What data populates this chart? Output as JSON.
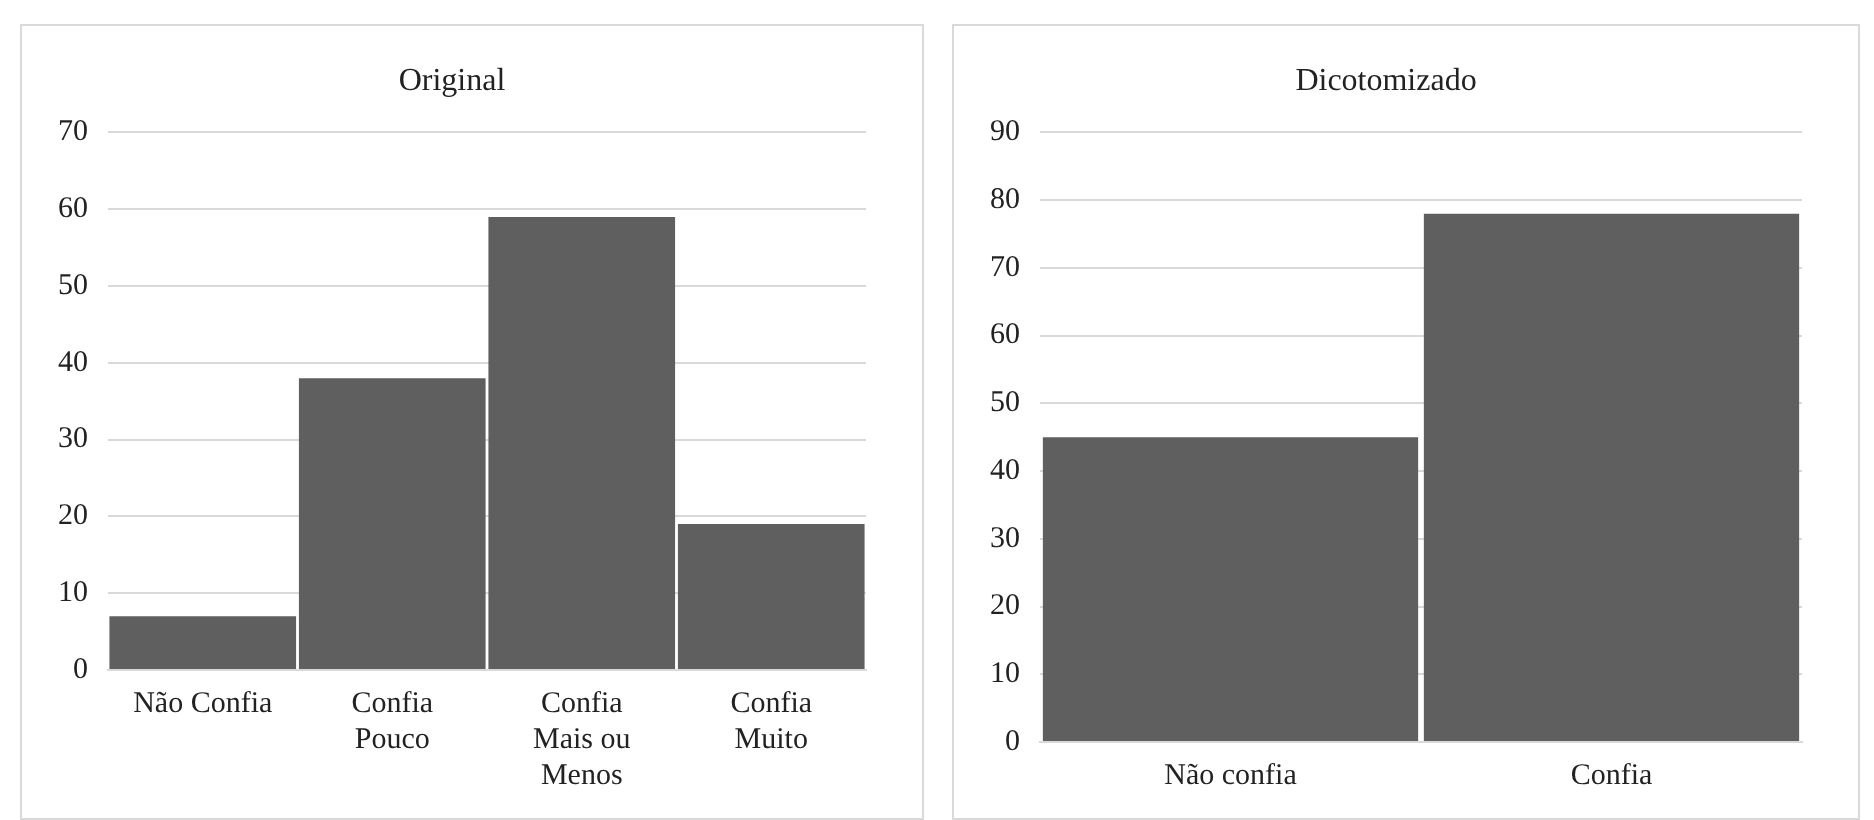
{
  "chart_data": [
    {
      "type": "bar",
      "title": "Original",
      "categories": [
        "Não Confia",
        "Confia Pouco",
        "Confia Mais ou Menos",
        "Confia Muito"
      ],
      "values": [
        7,
        38,
        59,
        19
      ],
      "color": "#5f5f5f",
      "ylim": [
        0,
        70
      ],
      "yticks": [
        0,
        10,
        20,
        30,
        40,
        50,
        60,
        70
      ],
      "grid": "y",
      "legend": false
    },
    {
      "type": "bar",
      "title": "Dicotomizado",
      "categories": [
        "Não confia",
        "Confia"
      ],
      "values": [
        45,
        78
      ],
      "color": "#5f5f5f",
      "ylim": [
        0,
        90
      ],
      "yticks": [
        0,
        10,
        20,
        30,
        40,
        50,
        60,
        70,
        80,
        90
      ],
      "grid": "y",
      "legend": false
    }
  ]
}
